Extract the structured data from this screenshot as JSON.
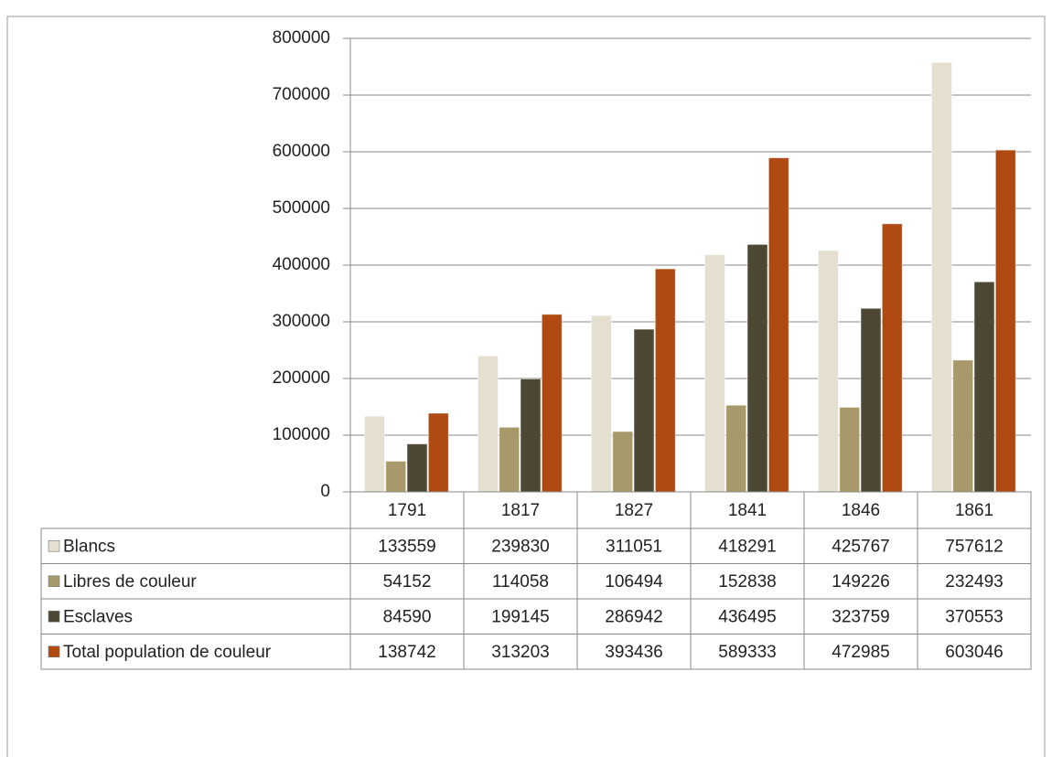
{
  "chart_data": {
    "type": "bar",
    "categories": [
      "1791",
      "1817",
      "1827",
      "1841",
      "1846",
      "1861"
    ],
    "series": [
      {
        "name": "Blancs",
        "color": "#e4dfcf",
        "values": [
          133559,
          239830,
          311051,
          418291,
          425767,
          757612
        ]
      },
      {
        "name": "Libres de couleur",
        "color": "#a8996a",
        "values": [
          54152,
          114058,
          106494,
          152838,
          149226,
          232493
        ]
      },
      {
        "name": "Esclaves",
        "color": "#4d4834",
        "values": [
          84590,
          199145,
          286942,
          436495,
          323759,
          370553
        ]
      },
      {
        "name": "Total population de couleur",
        "color": "#b14a12",
        "values": [
          138742,
          313203,
          393436,
          589333,
          472985,
          603046
        ]
      }
    ],
    "ylim": [
      0,
      800000
    ],
    "yticks": [
      0,
      100000,
      200000,
      300000,
      400000,
      500000,
      600000,
      700000,
      800000
    ],
    "grid": true
  }
}
